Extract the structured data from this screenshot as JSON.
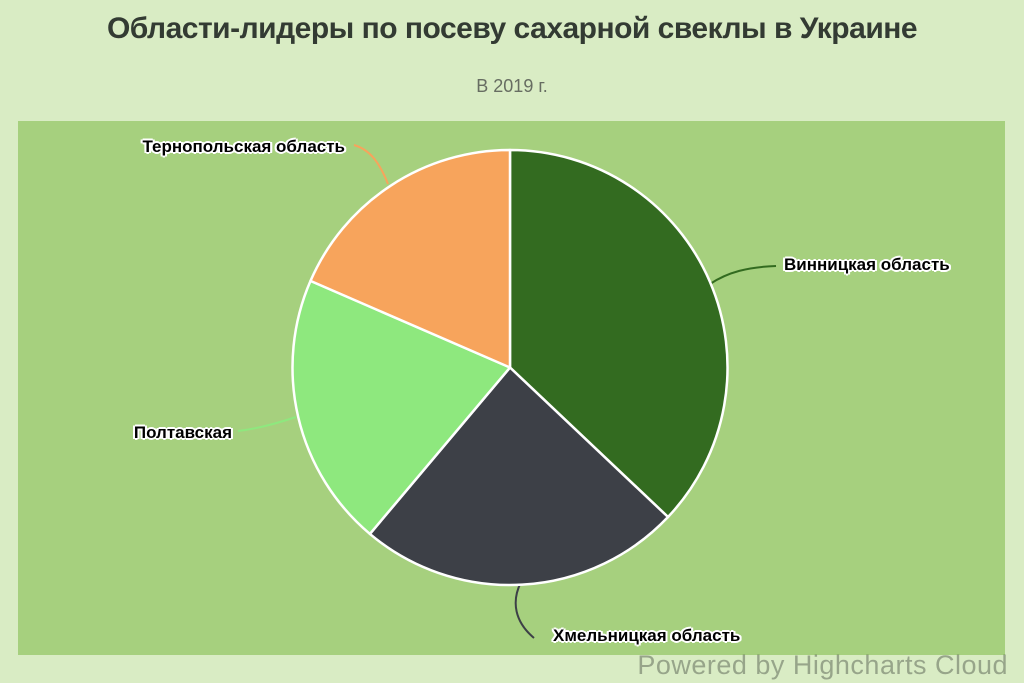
{
  "page": {
    "background_color": "#d9ecc4",
    "plot_background_color": "#a6d07e",
    "watermark": "Powered by Highcharts Cloud"
  },
  "header": {
    "title": "Области-лидеры по посеву сахарной свеклы в Украине",
    "subtitle": "В 2019 г.",
    "title_color": "#333b33",
    "subtitle_color": "#676d62"
  },
  "chart_data": {
    "type": "pie",
    "title": "Области-лидеры по посеву сахарной свеклы в Украине",
    "subtitle": "В 2019 г.",
    "start_angle_deg": 0,
    "direction": "clockwise",
    "values_note": "percent share estimated from slice angles",
    "points": [
      {
        "name": "Винницкая область",
        "value": 37.1,
        "color": "#336b20"
      },
      {
        "name": "Хмельницкая область",
        "value": 24.1,
        "color": "#3d4047"
      },
      {
        "name": "Полтавская",
        "value": 20.4,
        "color": "#8ee87e"
      },
      {
        "name": "Тернопольская область",
        "value": 18.5,
        "color": "#f7a45c"
      }
    ],
    "border_color": "#ffffff",
    "label_color": "#000000",
    "legend": "off"
  }
}
